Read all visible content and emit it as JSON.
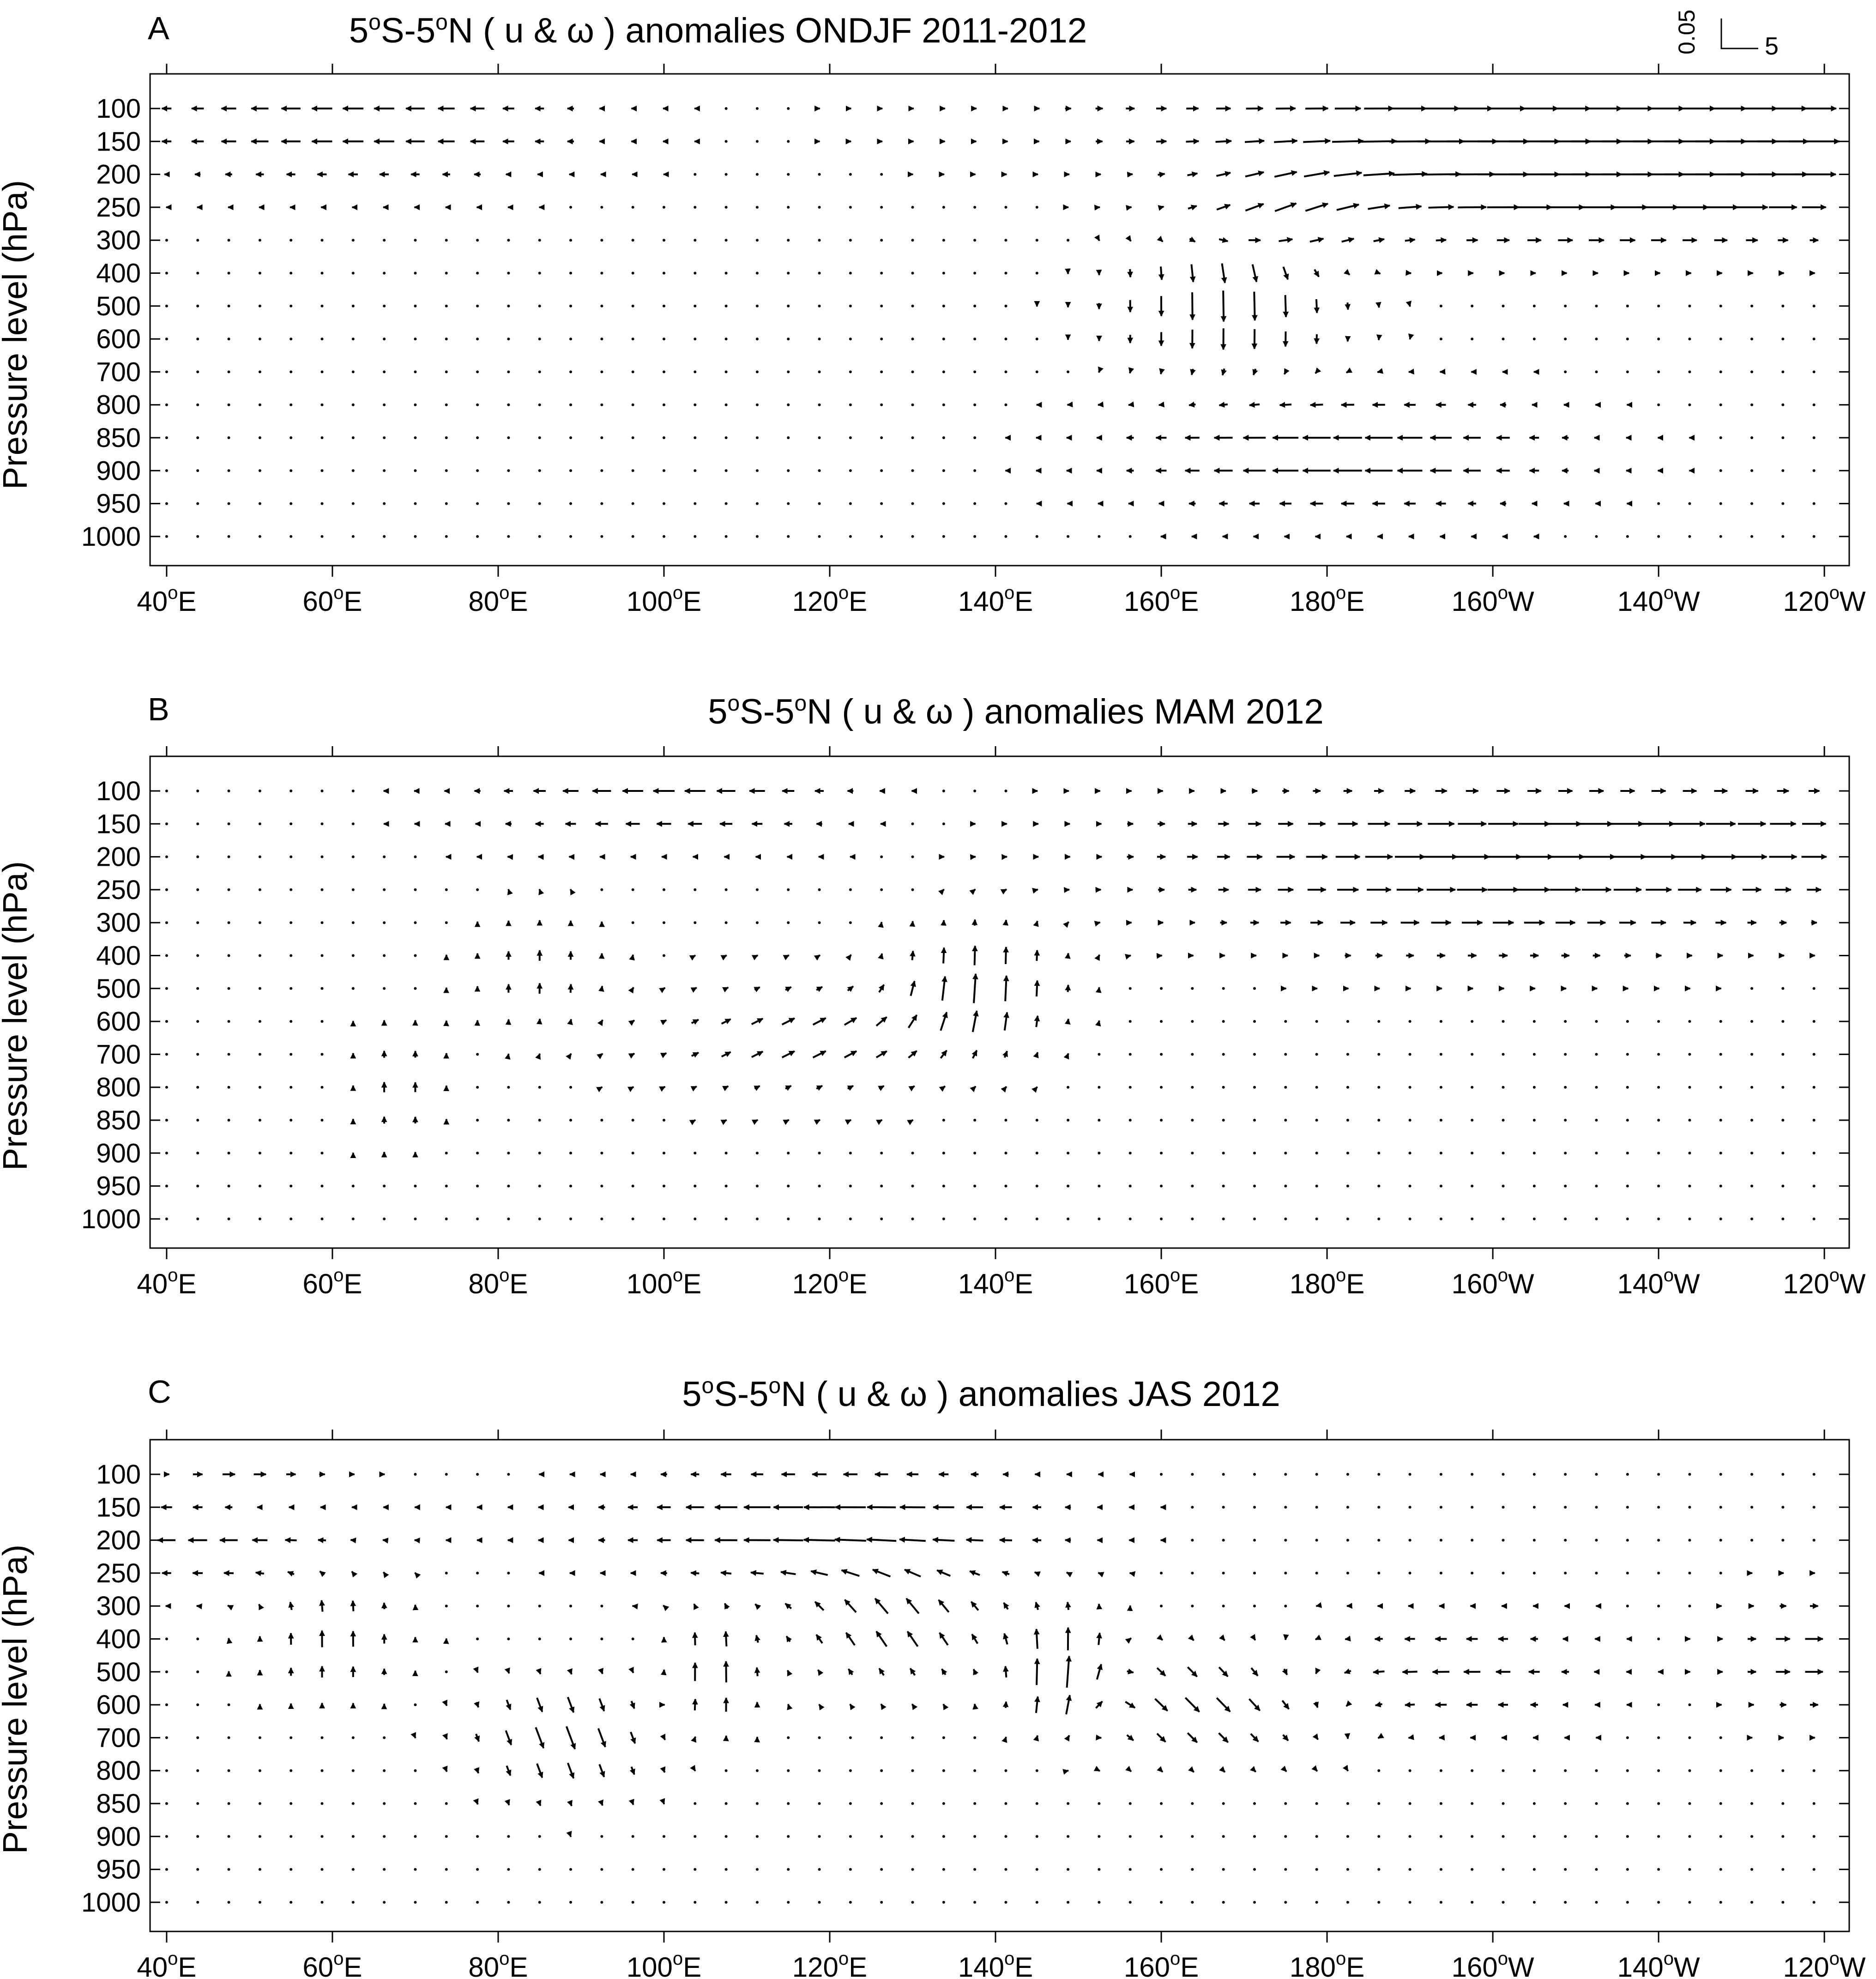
{
  "reference_vector": {
    "vertical_label": "0.05",
    "horizontal_label": "5"
  },
  "chart_data": [
    {
      "type": "vector_field",
      "panel_letter": "A",
      "title": {
        "pre": "5",
        "s1": "o",
        "mid": "S-5",
        "s2": "o",
        "post": "N  ( u & ω ) anomalies  ONDJF  2011-2012"
      },
      "ylabel": "Pressure level (hPa)",
      "xticks": [
        {
          "value": 40,
          "base": "40",
          "sup": "o",
          "suffix": "E"
        },
        {
          "value": 60,
          "base": "60",
          "sup": "o",
          "suffix": "E"
        },
        {
          "value": 80,
          "base": "80",
          "sup": "o",
          "suffix": "E"
        },
        {
          "value": 100,
          "base": "100",
          "sup": "o",
          "suffix": "E"
        },
        {
          "value": 120,
          "base": "120",
          "sup": "o",
          "suffix": "E"
        },
        {
          "value": 140,
          "base": "140",
          "sup": "o",
          "suffix": "E"
        },
        {
          "value": 160,
          "base": "160",
          "sup": "o",
          "suffix": "E"
        },
        {
          "value": 180,
          "base": "180",
          "sup": "o",
          "suffix": "E"
        },
        {
          "value": 200,
          "base": "160",
          "sup": "o",
          "suffix": "W"
        },
        {
          "value": 220,
          "base": "140",
          "sup": "o",
          "suffix": "W"
        },
        {
          "value": 240,
          "base": "120",
          "sup": "o",
          "suffix": "W"
        }
      ],
      "levels": [
        "100",
        "150",
        "200",
        "250",
        "300",
        "400",
        "500",
        "600",
        "700",
        "800",
        "850",
        "900",
        "950",
        "1000"
      ],
      "x_range_deg": [
        38,
        243
      ],
      "field": {
        "lon_start": 40,
        "lon_step": 3.75,
        "sources": [
          {
            "x": 62,
            "y": 0.5,
            "u": -1.6,
            "w": 0,
            "r": 25
          },
          {
            "x": 218,
            "y": 0.3,
            "u": 2.0,
            "w": 0,
            "r": 55
          },
          {
            "x": 222,
            "y": 1.0,
            "u": 2.5,
            "w": 0,
            "r": 35
          },
          {
            "x": 215,
            "y": 2.5,
            "u": 2.4,
            "w": 0,
            "r": 30
          },
          {
            "x": 168,
            "y": 6.0,
            "u": 0,
            "w": -2.2,
            "r": 12
          },
          {
            "x": 182,
            "y": 10.5,
            "u": -2.2,
            "w": 0,
            "r": 22
          },
          {
            "x": 175,
            "y": 3.2,
            "u": 1.0,
            "w": 0.6,
            "r": 12
          }
        ]
      }
    },
    {
      "type": "vector_field",
      "panel_letter": "B",
      "title": {
        "pre": "5",
        "s1": "o",
        "mid": "S-5",
        "s2": "o",
        "post": "N  ( u & ω ) anomalies  MAM 2012"
      },
      "ylabel": "Pressure level (hPa)",
      "xticks": [
        {
          "value": 40,
          "base": "40",
          "sup": "o",
          "suffix": "E"
        },
        {
          "value": 60,
          "base": "60",
          "sup": "o",
          "suffix": "E"
        },
        {
          "value": 80,
          "base": "80",
          "sup": "o",
          "suffix": "E"
        },
        {
          "value": 100,
          "base": "100",
          "sup": "o",
          "suffix": "E"
        },
        {
          "value": 120,
          "base": "120",
          "sup": "o",
          "suffix": "E"
        },
        {
          "value": 140,
          "base": "140",
          "sup": "o",
          "suffix": "E"
        },
        {
          "value": 160,
          "base": "160",
          "sup": "o",
          "suffix": "E"
        },
        {
          "value": 180,
          "base": "180",
          "sup": "o",
          "suffix": "E"
        },
        {
          "value": 200,
          "base": "160",
          "sup": "o",
          "suffix": "W"
        },
        {
          "value": 220,
          "base": "140",
          "sup": "o",
          "suffix": "W"
        },
        {
          "value": 240,
          "base": "120",
          "sup": "o",
          "suffix": "W"
        }
      ],
      "levels": [
        "100",
        "150",
        "200",
        "250",
        "300",
        "400",
        "500",
        "600",
        "700",
        "800",
        "850",
        "900",
        "950",
        "1000"
      ],
      "x_range_deg": [
        38,
        243
      ],
      "field": {
        "lon_start": 40,
        "lon_step": 3.75,
        "sources": [
          {
            "x": 100,
            "y": 0.0,
            "u": -1.5,
            "w": 0,
            "r": 20
          },
          {
            "x": 215,
            "y": 1.5,
            "u": 2.4,
            "w": 0,
            "r": 45
          },
          {
            "x": 200,
            "y": 3.5,
            "u": 1.4,
            "w": 0,
            "r": 30
          },
          {
            "x": 138,
            "y": 6.0,
            "u": 0,
            "w": 2.0,
            "r": 9
          },
          {
            "x": 118,
            "y": 7.5,
            "u": 1.0,
            "w": 0.5,
            "r": 18
          },
          {
            "x": 85,
            "y": 5.5,
            "u": 0,
            "w": 0.8,
            "r": 8
          },
          {
            "x": 68,
            "y": 9.0,
            "u": 0,
            "w": 0.8,
            "r": 5
          }
        ]
      }
    },
    {
      "type": "vector_field",
      "panel_letter": "C",
      "title": {
        "pre": "5",
        "s1": "o",
        "mid": "S-5",
        "s2": "o",
        "post": "N  ( u & ω ) anomalies  JAS 2012"
      },
      "ylabel": "Pressure level (hPa)",
      "xticks": [
        {
          "value": 40,
          "base": "40",
          "sup": "o",
          "suffix": "E"
        },
        {
          "value": 60,
          "base": "60",
          "sup": "o",
          "suffix": "E"
        },
        {
          "value": 80,
          "base": "80",
          "sup": "o",
          "suffix": "E"
        },
        {
          "value": 100,
          "base": "100",
          "sup": "o",
          "suffix": "E"
        },
        {
          "value": 120,
          "base": "120",
          "sup": "o",
          "suffix": "E"
        },
        {
          "value": 140,
          "base": "140",
          "sup": "o",
          "suffix": "E"
        },
        {
          "value": 160,
          "base": "160",
          "sup": "o",
          "suffix": "E"
        },
        {
          "value": 180,
          "base": "180",
          "sup": "o",
          "suffix": "E"
        },
        {
          "value": 200,
          "base": "160",
          "sup": "o",
          "suffix": "W"
        },
        {
          "value": 220,
          "base": "140",
          "sup": "o",
          "suffix": "W"
        },
        {
          "value": 240,
          "base": "120",
          "sup": "o",
          "suffix": "W"
        }
      ],
      "levels": [
        "100",
        "150",
        "200",
        "250",
        "300",
        "400",
        "500",
        "600",
        "700",
        "800",
        "850",
        "900",
        "950",
        "1000"
      ],
      "x_range_deg": [
        38,
        243
      ],
      "field": {
        "lon_start": 40,
        "lon_step": 3.75,
        "sources": [
          {
            "x": 48,
            "y": 0.0,
            "u": 1.6,
            "w": 0,
            "r": 12
          },
          {
            "x": 45,
            "y": 1.5,
            "u": -1.8,
            "w": 0,
            "r": 15
          },
          {
            "x": 120,
            "y": 1.5,
            "u": -2.4,
            "w": 0,
            "r": 22
          },
          {
            "x": 148,
            "y": 6.0,
            "u": 0,
            "w": 2.4,
            "r": 6
          },
          {
            "x": 88,
            "y": 8.0,
            "u": 0.6,
            "w": -1.6,
            "r": 10
          },
          {
            "x": 60,
            "y": 5.0,
            "u": 0,
            "w": 1.2,
            "r": 8
          },
          {
            "x": 106,
            "y": 6.0,
            "u": 0,
            "w": 1.6,
            "r": 5
          },
          {
            "x": 128,
            "y": 4.5,
            "u": -0.8,
            "w": 1.2,
            "r": 12
          },
          {
            "x": 165,
            "y": 7.0,
            "u": 1.0,
            "w": -1.0,
            "r": 14
          },
          {
            "x": 195,
            "y": 6.0,
            "u": -1.2,
            "w": 0,
            "r": 15
          },
          {
            "x": 240,
            "y": 5.5,
            "u": 1.4,
            "w": 0,
            "r": 10
          }
        ]
      }
    }
  ]
}
